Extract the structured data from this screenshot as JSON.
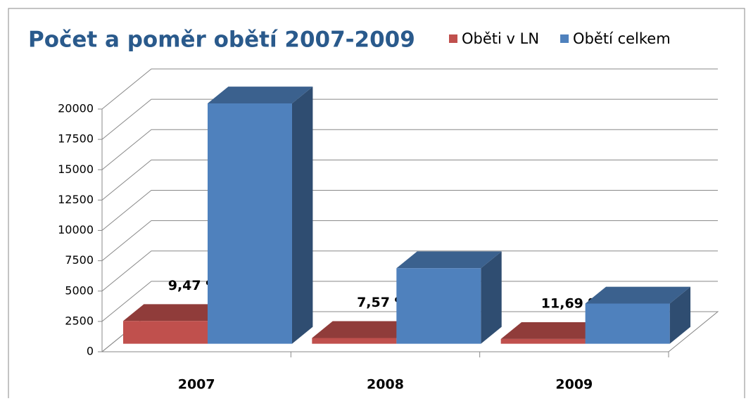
{
  "chart_data": {
    "type": "bar3d",
    "title": "Počet a poměr obětí 2007-2009",
    "categories": [
      "2007",
      "2008",
      "2009"
    ],
    "series": [
      {
        "name": "Oběti v LN",
        "color": "#c0504d",
        "values": [
          1875,
          471,
          387
        ]
      },
      {
        "name": "Obětí celkem",
        "color": "#4f81bd",
        "values": [
          19800,
          6220,
          3310
        ]
      }
    ],
    "annotations": [
      "9,47 %",
      "7,57 %",
      "11,69 %"
    ],
    "ylim": [
      0,
      20000
    ],
    "yticks": [
      0,
      2500,
      5000,
      7500,
      10000,
      12500,
      15000,
      17500,
      20000
    ],
    "grid": true,
    "legend": "top-right"
  }
}
